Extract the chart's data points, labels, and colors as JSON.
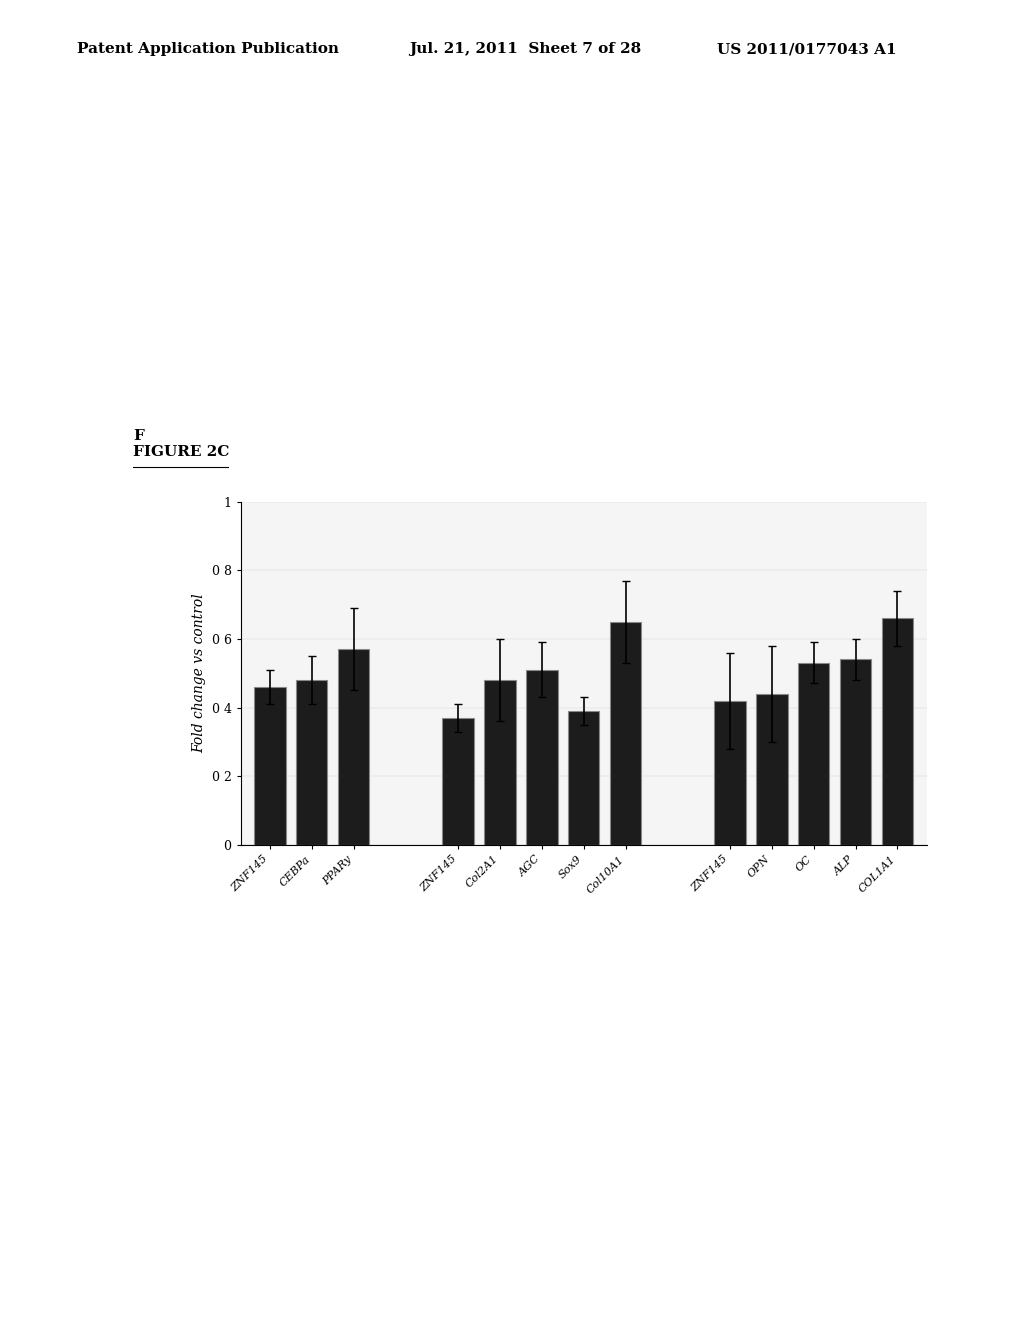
{
  "header_left": "Patent Application Publication",
  "header_mid": "Jul. 21, 2011  Sheet 7 of 28",
  "header_right": "US 2011/0177043 A1",
  "figure_label_text": "F",
  "figure_label_full": "IGURE 2C",
  "ylabel": "Fold change vs control",
  "ylim": [
    0,
    1.0
  ],
  "yticks": [
    0,
    0.2,
    0.4,
    0.6,
    0.8,
    1
  ],
  "ytick_labels": [
    "0",
    "0 2",
    "0 4",
    "0 6",
    "0 8",
    "1"
  ],
  "categories": [
    "ZNF145",
    "CEBPa",
    "PPARy",
    "ZNF145",
    "Col2A1",
    "AGC",
    "Sox9",
    "Col10A1",
    "ZNF145",
    "OPN",
    "OC",
    "ALP",
    "COL1A1"
  ],
  "values": [
    0.46,
    0.48,
    0.57,
    0.37,
    0.48,
    0.51,
    0.39,
    0.65,
    0.42,
    0.44,
    0.53,
    0.54,
    0.66
  ],
  "errors": [
    0.05,
    0.07,
    0.12,
    0.04,
    0.12,
    0.08,
    0.04,
    0.12,
    0.14,
    0.14,
    0.06,
    0.06,
    0.08
  ],
  "group_breaks": [
    3,
    8
  ],
  "bar_color": "#1c1c1c",
  "bar_edge_color": "#888888",
  "background_color": "#ffffff",
  "bar_width": 0.75,
  "fig_width": 10.24,
  "fig_height": 13.2,
  "header_fontsize": 11,
  "figure_label_fontsize": 11
}
